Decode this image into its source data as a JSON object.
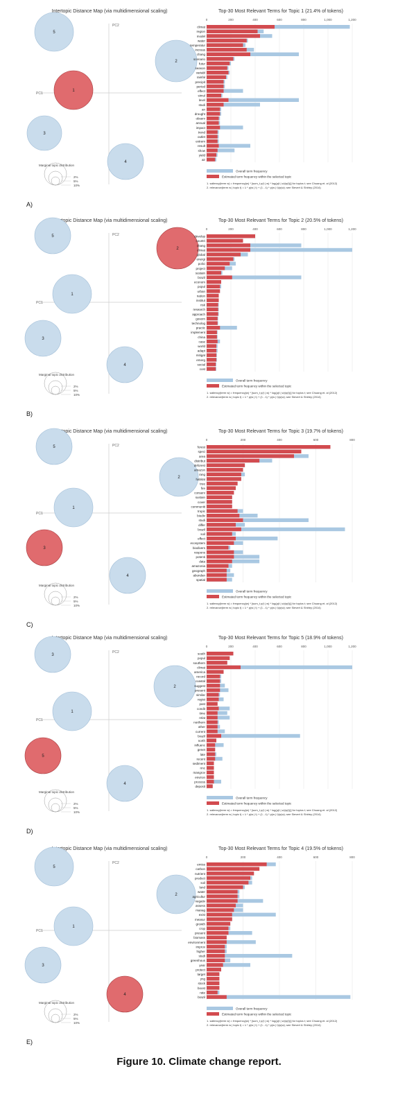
{
  "figure_caption": "Figure 10. Climate change report.",
  "colors": {
    "overall": "#a9c8e2",
    "selected": "#d24b4f",
    "circle_blue": "#c9dcec",
    "circle_red": "#e06b6e"
  },
  "shared": {
    "idm_title": "Intertopic Distance Map (via multidimensional scaling)",
    "pc1": "PC1",
    "pc2": "PC2",
    "marginal_title": "Marginal topic distribution",
    "legend_overall": "Overall term frequency",
    "legend_selected": "Estimated term frequency within the selected topic",
    "footnote1": "1. saliency(term w) = frequency(w) * [sum_t p(t | w) * log(p(t | w)/p(t))] for topics t; see Chuang et. al (2012)",
    "footnote2": "2. relevance(term w | topic t) = λ * p(w | t) + (1 - λ) * p(w | t)/p(w); see Sievert & Shirley (2014)"
  },
  "chart_data": [
    {
      "type": "bar",
      "panel_label": "A)",
      "title": "Top-30 Most Relevant Terms for Topic 1 (21.4% of tokens)",
      "selected_topic": 1,
      "marginal_labels": [
        "2%",
        "5%",
        "10%"
      ],
      "xlim": [
        0,
        1200
      ],
      "ticks": [
        0,
        200,
        400,
        600,
        800,
        1000,
        1200
      ],
      "categories": [
        "climat",
        "region",
        "model",
        "water",
        "temperatur",
        "increas",
        "chang",
        "scenario",
        "futur",
        "season",
        "variabl",
        "rainfal",
        "precipit",
        "period",
        "effect",
        "simul",
        "level",
        "studi",
        "an",
        "drought",
        "observ",
        "annual",
        "impact",
        "trend",
        "outlet",
        "extrem",
        "result",
        "show",
        "yield",
        "air"
      ],
      "series": [
        {
          "name": "Overall term frequency",
          "values": [
            1180,
            470,
            540,
            340,
            320,
            390,
            760,
            230,
            200,
            180,
            190,
            170,
            150,
            150,
            300,
            130,
            760,
            440,
            120,
            120,
            110,
            110,
            300,
            100,
            100,
            100,
            360,
            230,
            90,
            80
          ]
        },
        {
          "name": "Estimated term frequency within the selected topic",
          "values": [
            560,
            420,
            440,
            330,
            300,
            330,
            360,
            220,
            190,
            170,
            180,
            160,
            140,
            140,
            140,
            120,
            180,
            140,
            110,
            110,
            100,
            100,
            110,
            90,
            90,
            90,
            100,
            90,
            80,
            70
          ]
        }
      ],
      "topics": [
        {
          "id": "5",
          "size": "medium"
        },
        {
          "id": "2",
          "size": "medium"
        },
        {
          "id": "1",
          "size": "medium"
        },
        {
          "id": "3",
          "size": "medium"
        },
        {
          "id": "4",
          "size": "medium"
        }
      ]
    },
    {
      "type": "bar",
      "panel_label": "B)",
      "title": "Top-30 Most Relevant Terms for Topic 2 (20.5% of tokens)",
      "selected_topic": 2,
      "marginal_labels": [
        "2%",
        "5%",
        "10%"
      ],
      "xlim": [
        0,
        1200
      ],
      "ticks": [
        0,
        200,
        400,
        600,
        800,
        1000,
        1200
      ],
      "categories": [
        "develop",
        "countri",
        "chang",
        "climat",
        "global",
        "energi",
        "polici",
        "project",
        "sustain",
        "brazil",
        "econom",
        "popul",
        "urban",
        "nation",
        "institut",
        "risk",
        "research",
        "approach",
        "govern",
        "technolog",
        "practic",
        "implement",
        "china",
        "case",
        "world",
        "adapt",
        "mitigat",
        "emerg",
        "social",
        "cost"
      ],
      "series": [
        {
          "name": "Overall term frequency",
          "values": [
            400,
            300,
            780,
            1200,
            340,
            230,
            240,
            210,
            130,
            780,
            120,
            120,
            110,
            100,
            100,
            100,
            100,
            100,
            95,
            95,
            250,
            90,
            90,
            110,
            90,
            90,
            85,
            85,
            80,
            80
          ]
        },
        {
          "name": "Estimated term frequency within the selected topic",
          "values": [
            400,
            300,
            360,
            360,
            280,
            220,
            190,
            150,
            120,
            210,
            120,
            110,
            110,
            100,
            100,
            95,
            95,
            95,
            90,
            90,
            110,
            85,
            85,
            90,
            80,
            80,
            80,
            80,
            75,
            75
          ]
        }
      ]
    },
    {
      "type": "bar",
      "panel_label": "C)",
      "title": "Top-30 Most Relevant Terms for Topic 3 (19.7% of tokens)",
      "selected_topic": 3,
      "marginal_labels": [
        "2%",
        "5%",
        "10%"
      ],
      "xlim": [
        0,
        800
      ],
      "ticks": [
        0,
        200,
        400,
        600,
        800
      ],
      "categories": [
        "forest",
        "speci",
        "area",
        "distribut",
        "deforest",
        "amazon",
        "rang",
        "habitat",
        "tree",
        "fire",
        "conserv",
        "sustain",
        "cover",
        "communiti",
        "tropic",
        "biodiv",
        "studi",
        "differ",
        "brazil",
        "soil",
        "effect",
        "ecosystem",
        "biodivers",
        "respons",
        "potenti",
        "data",
        "amazonia",
        "geograph",
        "abundan",
        "spatial"
      ],
      "series": [
        {
          "name": "Overall term frequency",
          "values": [
            680,
            520,
            560,
            360,
            210,
            200,
            210,
            190,
            170,
            160,
            150,
            140,
            140,
            140,
            200,
            280,
            560,
            210,
            760,
            160,
            390,
            200,
            130,
            200,
            290,
            290,
            140,
            130,
            150,
            140
          ]
        },
        {
          "name": "Estimated term frequency within the selected topic",
          "values": [
            680,
            520,
            480,
            290,
            210,
            200,
            190,
            190,
            170,
            160,
            150,
            140,
            140,
            140,
            170,
            180,
            200,
            160,
            190,
            140,
            160,
            150,
            120,
            150,
            150,
            140,
            120,
            110,
            110,
            110
          ]
        }
      ]
    },
    {
      "type": "bar",
      "panel_label": "D)",
      "title": "Top-30 Most Relevant Terms for Topic 5 (18.9% of tokens)",
      "selected_topic": 5,
      "marginal_labels": [
        "2%",
        "5%",
        "10%"
      ],
      "xlim": [
        0,
        1200
      ],
      "ticks": [
        0,
        200,
        400,
        600,
        800,
        1000,
        1200
      ],
      "categories": [
        "south",
        "popul",
        "southern",
        "climat",
        "america",
        "record",
        "coastal",
        "suggest",
        "present",
        "similar",
        "regist",
        "past",
        "condit",
        "time",
        "relat",
        "northern",
        "other",
        "current",
        "brazil",
        "north",
        "influenc",
        "genet",
        "late",
        "recent",
        "sediment",
        "rmc",
        "mangrov",
        "environ",
        "process",
        "deposit"
      ],
      "series": [
        {
          "name": "Overall term frequency",
          "values": [
            220,
            190,
            170,
            1200,
            140,
            120,
            120,
            150,
            180,
            110,
            140,
            90,
            190,
            170,
            190,
            100,
            110,
            150,
            770,
            80,
            140,
            70,
            80,
            130,
            60,
            60,
            60,
            60,
            120,
            50
          ]
        },
        {
          "name": "Estimated term frequency within the selected topic",
          "values": [
            220,
            190,
            170,
            280,
            140,
            110,
            110,
            110,
            110,
            100,
            100,
            90,
            100,
            90,
            90,
            90,
            90,
            90,
            120,
            80,
            70,
            70,
            70,
            70,
            60,
            60,
            60,
            60,
            60,
            50
          ]
        }
      ]
    },
    {
      "type": "bar",
      "panel_label": "E)",
      "title": "Top-30 Most Relevant Terms for Topic 4 (19.5% of tokens)",
      "selected_topic": 4,
      "marginal_labels": [
        "2%",
        "5%",
        "10%"
      ],
      "xlim": [
        0,
        800
      ],
      "ticks": [
        0,
        200,
        400,
        600,
        800
      ],
      "categories": [
        "emiss",
        "carbon",
        "nutrient",
        "product",
        "soil",
        "land",
        "water",
        "agricultur",
        "negativ",
        "assess",
        "manag",
        "exist",
        "measur",
        "growth",
        "crop",
        "present",
        "biomass",
        "environment",
        "improv",
        "higher",
        "studi",
        "greenhous",
        "year",
        "protect",
        "target",
        "yng",
        "stock",
        "boost",
        "rate",
        "brazil"
      ],
      "series": [
        {
          "name": "Overall term frequency",
          "values": [
            380,
            290,
            260,
            250,
            250,
            210,
            180,
            180,
            310,
            200,
            200,
            380,
            140,
            130,
            130,
            250,
            110,
            270,
            110,
            110,
            470,
            130,
            240,
            80,
            70,
            70,
            70,
            70,
            70,
            790
          ]
        },
        {
          "name": "Estimated term frequency within the selected topic",
          "values": [
            330,
            290,
            260,
            240,
            230,
            200,
            170,
            170,
            170,
            160,
            150,
            140,
            140,
            130,
            120,
            120,
            110,
            110,
            100,
            100,
            100,
            100,
            90,
            80,
            70,
            70,
            70,
            70,
            60,
            110
          ]
        }
      ]
    }
  ]
}
